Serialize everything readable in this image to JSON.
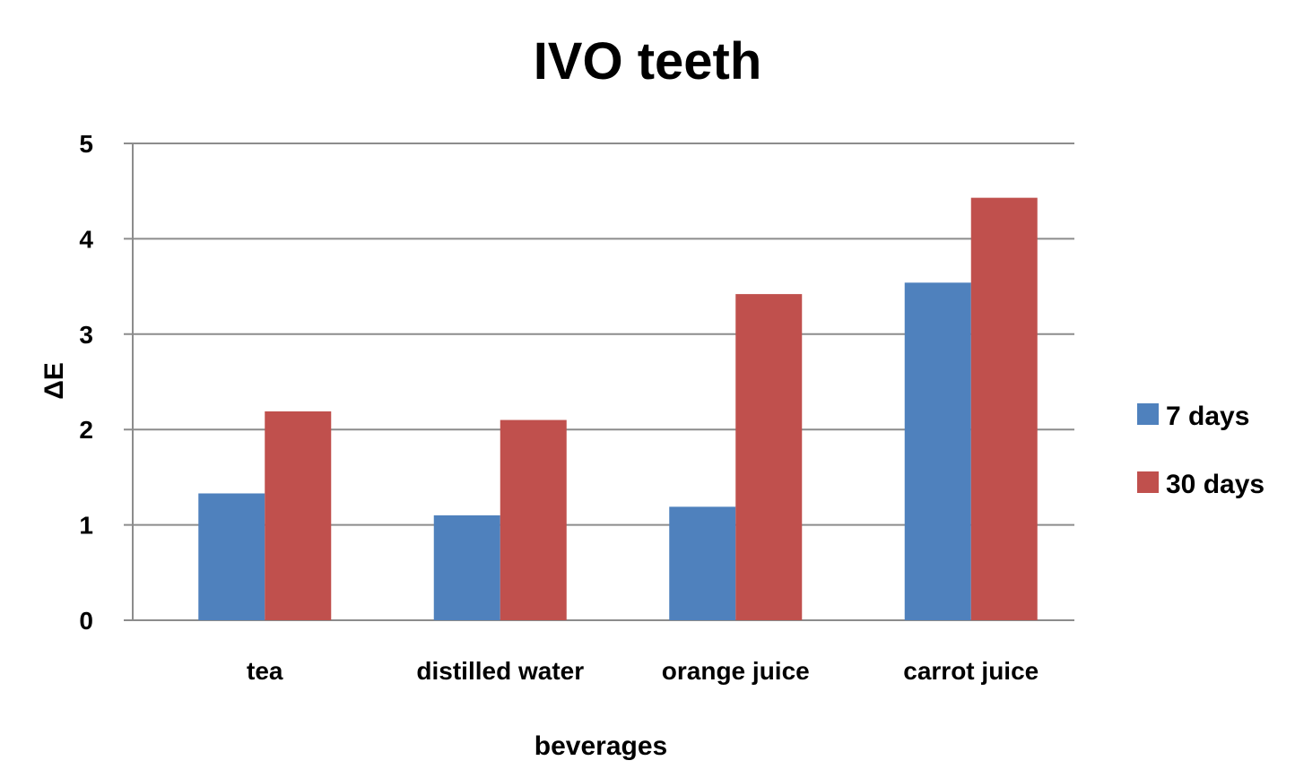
{
  "chart_data": {
    "type": "bar",
    "title": "IVO teeth",
    "xlabel": "beverages",
    "ylabel": "ΔE",
    "categories": [
      "tea",
      "distilled water",
      "orange juice",
      "carrot juice"
    ],
    "series": [
      {
        "name": "7 days",
        "color": "#4f81bd",
        "values": [
          1.33,
          1.1,
          1.19,
          3.54
        ]
      },
      {
        "name": "30 days",
        "color": "#c0504d",
        "values": [
          2.19,
          2.1,
          3.42,
          4.43
        ]
      }
    ],
    "ylim": [
      0,
      5
    ],
    "yticks": [
      "0",
      "1",
      "2",
      "3",
      "4",
      "5"
    ],
    "grid": true,
    "legend": "right"
  }
}
